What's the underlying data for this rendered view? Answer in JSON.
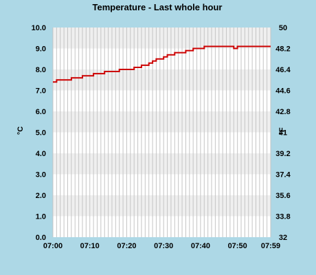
{
  "chart_data": {
    "type": "line",
    "title": "Temperature - Last whole hour",
    "ylabel": "°C",
    "y2label": "°F",
    "ylim": [
      0,
      10
    ],
    "y2lim": [
      32,
      50
    ],
    "y_ticks": [
      "0.0",
      "1.0",
      "2.0",
      "3.0",
      "4.0",
      "5.0",
      "6.0",
      "7.0",
      "8.0",
      "9.0",
      "10.0"
    ],
    "y2_ticks": [
      "32",
      "33.8",
      "35.6",
      "37.4",
      "39.2",
      "41",
      "42.8",
      "44.6",
      "46.4",
      "48.2",
      "50"
    ],
    "x_ticks": [
      "07:00",
      "07:10",
      "07:20",
      "07:30",
      "07:40",
      "07:50",
      "07:59"
    ],
    "x_range_minutes": [
      0,
      59
    ],
    "grid": true,
    "series": [
      {
        "color": "#cc0000",
        "x": [
          "07:00",
          "07:01",
          "07:02",
          "07:03",
          "07:04",
          "07:05",
          "07:06",
          "07:07",
          "07:08",
          "07:09",
          "07:10",
          "07:11",
          "07:12",
          "07:13",
          "07:14",
          "07:15",
          "07:16",
          "07:17",
          "07:18",
          "07:19",
          "07:20",
          "07:21",
          "07:22",
          "07:23",
          "07:24",
          "07:25",
          "07:26",
          "07:27",
          "07:28",
          "07:29",
          "07:30",
          "07:31",
          "07:32",
          "07:33",
          "07:34",
          "07:35",
          "07:36",
          "07:37",
          "07:38",
          "07:39",
          "07:40",
          "07:41",
          "07:42",
          "07:43",
          "07:44",
          "07:45",
          "07:46",
          "07:47",
          "07:48",
          "07:49",
          "07:50",
          "07:51",
          "07:52",
          "07:53",
          "07:54",
          "07:55",
          "07:56",
          "07:57",
          "07:58",
          "07:59"
        ],
        "values": [
          7.4,
          7.5,
          7.5,
          7.5,
          7.5,
          7.6,
          7.6,
          7.6,
          7.7,
          7.7,
          7.7,
          7.8,
          7.8,
          7.8,
          7.9,
          7.9,
          7.9,
          7.9,
          8.0,
          8.0,
          8.0,
          8.0,
          8.1,
          8.1,
          8.2,
          8.2,
          8.3,
          8.4,
          8.5,
          8.5,
          8.6,
          8.7,
          8.7,
          8.8,
          8.8,
          8.8,
          8.9,
          8.9,
          9.0,
          9.0,
          9.0,
          9.1,
          9.1,
          9.1,
          9.1,
          9.1,
          9.1,
          9.1,
          9.1,
          9.0,
          9.1,
          9.1,
          9.1,
          9.1,
          9.1,
          9.1,
          9.1,
          9.1,
          9.1,
          9.1
        ]
      }
    ]
  }
}
